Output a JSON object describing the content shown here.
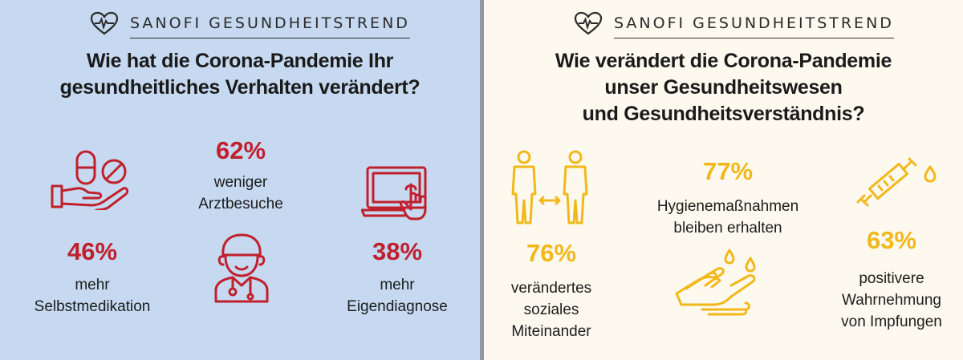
{
  "left": {
    "brand": "SANOFI GESUNDHEITSTREND",
    "title_line1": "Wie hat die Corona-Pandemie Ihr",
    "title_line2": "gesundheitliches Verhalten verändert?",
    "stats": [
      {
        "value": "62%",
        "label_line1": "weniger",
        "label_line2": "Arztbesuche"
      },
      {
        "value": "46%",
        "label_line1": "mehr",
        "label_line2": "Selbstmedikation"
      },
      {
        "value": "38%",
        "label_line1": "mehr",
        "label_line2": "Eigendiagnose"
      }
    ]
  },
  "right": {
    "brand": "SANOFI GESUNDHEITSTREND",
    "title_line1": "Wie verändert die Corona-Pandemie",
    "title_line2": "unser Gesundheitswesen",
    "title_line3": "und Gesundheitsverständnis?",
    "stats": [
      {
        "value": "77%",
        "label_line1": "Hygienemaßnahmen",
        "label_line2": "bleiben erhalten"
      },
      {
        "value": "76%",
        "label_line1": "verändertes",
        "label_line2": "soziales",
        "label_line3": "Miteinander"
      },
      {
        "value": "63%",
        "label_line1": "positivere",
        "label_line2": "Wahrnehmung",
        "label_line3": "von Impfungen"
      }
    ]
  },
  "colors": {
    "left_bg": "#c6d9f0",
    "right_bg": "#fdf9ee",
    "red_accent": "#c0202c",
    "yellow_accent": "#f2b81b",
    "divider": "#8f98a3"
  },
  "icons": [
    "heart-pulse-icon",
    "pills-hand-icon",
    "doctor-icon",
    "laptop-touch-icon",
    "people-distance-icon",
    "syringe-icon",
    "washing-hands-icon"
  ]
}
